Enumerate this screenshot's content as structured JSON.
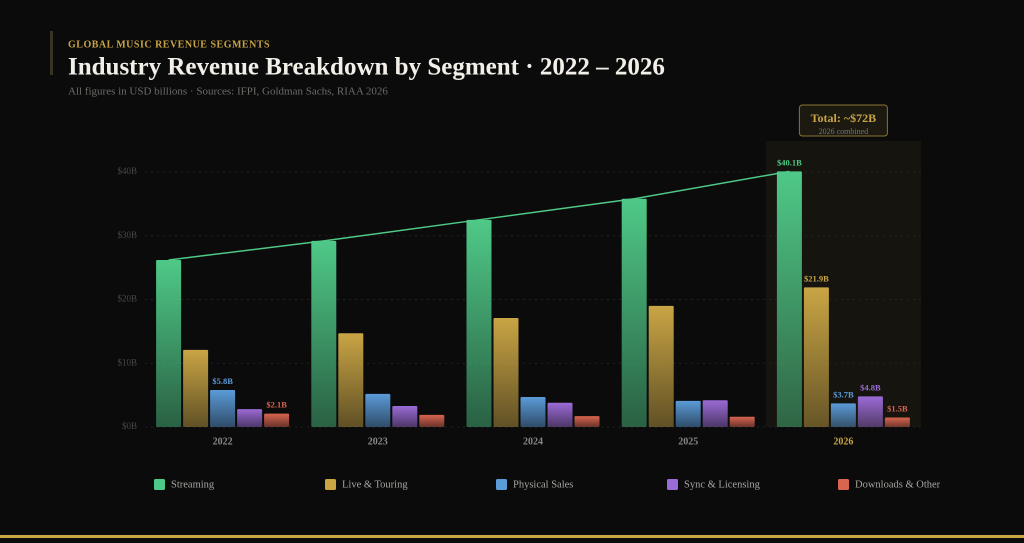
{
  "chart_data": {
    "type": "bar",
    "eyebrow": "GLOBAL MUSIC REVENUE SEGMENTS",
    "title": "Industry Revenue Breakdown by Segment · 2022 – 2026",
    "subtitle": "All figures in USD billions · Sources: IFPI, Goldman Sachs, RIAA 2026",
    "annotation": {
      "text": "Total: ~$72B",
      "subtext": "2026 combined"
    },
    "categories": [
      "2022",
      "2023",
      "2024",
      "2025",
      "2026"
    ],
    "series": [
      {
        "name": "Streaming",
        "color": "#4fc987",
        "values": [
          26.2,
          29.2,
          32.5,
          35.8,
          40.1
        ],
        "value_labels": [
          null,
          null,
          null,
          null,
          "$40.1B"
        ]
      },
      {
        "name": "Live & Touring",
        "color": "#c9a544",
        "values": [
          12.1,
          14.7,
          17.1,
          19.0,
          21.9
        ],
        "value_labels": [
          null,
          null,
          null,
          null,
          "$21.9B"
        ]
      },
      {
        "name": "Physical Sales",
        "color": "#5b9bd8",
        "values": [
          5.8,
          5.2,
          4.7,
          4.1,
          3.7
        ],
        "value_labels": [
          "$5.8B",
          null,
          null,
          null,
          "$3.7B"
        ]
      },
      {
        "name": "Sync & Licensing",
        "color": "#9b6bd6",
        "values": [
          2.8,
          3.3,
          3.8,
          4.2,
          4.8
        ],
        "value_labels": [
          null,
          null,
          null,
          null,
          "$4.8B"
        ]
      },
      {
        "name": "Downloads & Other",
        "color": "#d9644f",
        "values": [
          2.1,
          1.9,
          1.7,
          1.6,
          1.5
        ],
        "value_labels": [
          "$2.1B",
          null,
          null,
          null,
          "$1.5B"
        ]
      }
    ],
    "ylim": [
      0,
      40
    ],
    "yticks": [
      {
        "value": 0,
        "label": "$0B"
      },
      {
        "value": 10,
        "label": "$10B"
      },
      {
        "value": 20,
        "label": "$20B"
      },
      {
        "value": 30,
        "label": "$30B"
      },
      {
        "value": 40,
        "label": "$40B"
      }
    ],
    "grid": true,
    "trend_line": true,
    "legend": "bottom"
  }
}
